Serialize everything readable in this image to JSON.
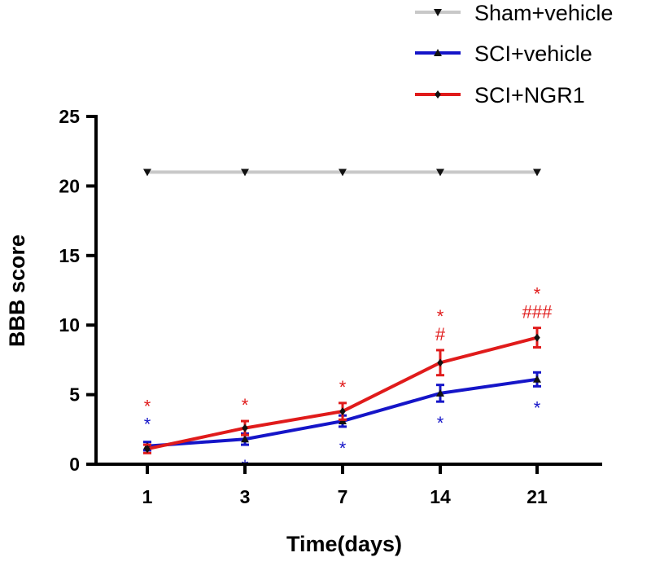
{
  "chart_data": {
    "type": "line",
    "title": "",
    "xlabel": "Time(days)",
    "ylabel": "BBB score",
    "ylim": [
      0,
      25
    ],
    "y_ticks": [
      0,
      5,
      10,
      15,
      20,
      25
    ],
    "categories": [
      "1",
      "3",
      "7",
      "14",
      "21"
    ],
    "grid": false,
    "legend_position": "top-right",
    "series": [
      {
        "name": "Sham+vehicle",
        "color": "#c8c8c8",
        "marker": "triangle-down",
        "values": [
          21,
          21,
          21,
          21,
          21
        ],
        "errors": [
          0,
          0,
          0,
          0,
          0
        ]
      },
      {
        "name": "SCI+vehicle",
        "color": "#1515c8",
        "marker": "triangle-up",
        "values": [
          1.3,
          1.8,
          3.1,
          5.1,
          6.1
        ],
        "errors": [
          0.3,
          0.4,
          0.4,
          0.6,
          0.5
        ]
      },
      {
        "name": "SCI+NGR1",
        "color": "#e01b1b",
        "marker": "diamond",
        "values": [
          1.1,
          2.6,
          3.8,
          7.3,
          9.1
        ],
        "errors": [
          0.3,
          0.5,
          0.6,
          0.9,
          0.7
        ]
      }
    ],
    "annotations": [
      {
        "category": "1",
        "series": "SCI+NGR1",
        "color": "#e01b1b",
        "lines": [
          "*"
        ]
      },
      {
        "category": "1",
        "series": "SCI+vehicle",
        "color": "#1515c8",
        "lines": [
          "*"
        ]
      },
      {
        "category": "3",
        "series": "SCI+NGR1",
        "color": "#e01b1b",
        "lines": [
          "*"
        ]
      },
      {
        "category": "3",
        "series": "SCI+vehicle",
        "color": "#1515c8",
        "lines": [
          "*"
        ]
      },
      {
        "category": "7",
        "series": "SCI+NGR1",
        "color": "#e01b1b",
        "lines": [
          "*"
        ]
      },
      {
        "category": "7",
        "series": "SCI+vehicle",
        "color": "#1515c8",
        "lines": [
          "*"
        ]
      },
      {
        "category": "14",
        "series": "SCI+NGR1",
        "color": "#e01b1b",
        "lines": [
          "*",
          "#"
        ]
      },
      {
        "category": "14",
        "series": "SCI+vehicle",
        "color": "#1515c8",
        "lines": [
          "*"
        ]
      },
      {
        "category": "21",
        "series": "SCI+NGR1",
        "color": "#e01b1b",
        "lines": [
          "*",
          "###"
        ]
      },
      {
        "category": "21",
        "series": "SCI+vehicle",
        "color": "#1515c8",
        "lines": [
          "*"
        ]
      }
    ]
  }
}
